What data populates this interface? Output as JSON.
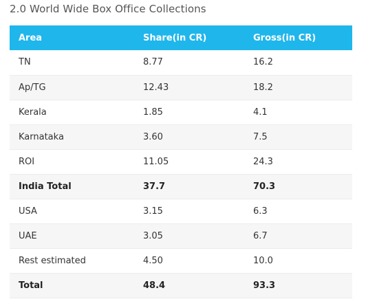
{
  "title": "2.0 World Wide Box Office Collections",
  "table": {
    "headers": [
      "Area",
      "Share(in CR)",
      "Gross(in CR)"
    ],
    "rows": [
      {
        "area": "TN",
        "share": "8.77",
        "gross": "16.2",
        "bold": false
      },
      {
        "area": "Ap/TG",
        "share": "12.43",
        "gross": "18.2",
        "bold": false
      },
      {
        "area": "Kerala",
        "share": "1.85",
        "gross": "4.1",
        "bold": false
      },
      {
        "area": "Karnataka",
        "share": "3.60",
        "gross": "7.5",
        "bold": false
      },
      {
        "area": "ROI",
        "share": "11.05",
        "gross": "24.3",
        "bold": false
      },
      {
        "area": "India Total",
        "share": "37.7",
        "gross": "70.3",
        "bold": true
      },
      {
        "area": "USA",
        "share": "3.15",
        "gross": "6.3",
        "bold": false
      },
      {
        "area": "UAE",
        "share": "3.05",
        "gross": "6.7",
        "bold": false
      },
      {
        "area": "Rest estimated",
        "share": "4.50",
        "gross": "10.0",
        "bold": false
      },
      {
        "area": "Total",
        "share": "48.4",
        "gross": "93.3",
        "bold": true
      }
    ]
  },
  "colors": {
    "header_bg": "#1fb6ec",
    "header_text": "#ffffff",
    "stripe": "#f6f6f6"
  }
}
